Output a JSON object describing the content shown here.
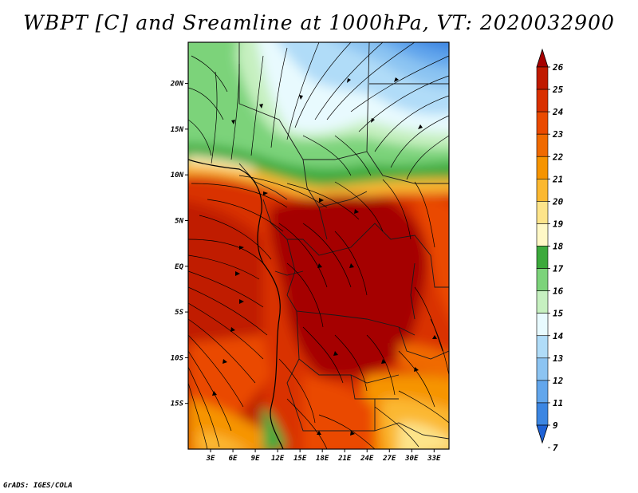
{
  "title": "WBPT [C] and Sreamline at 1000hPa, VT: 2020032900",
  "credit": "GrADS: IGES/COLA",
  "map": {
    "lat_labels": [
      "20N",
      "15N",
      "10N",
      "5N",
      "EQ",
      "5S",
      "10S",
      "15S"
    ],
    "lon_labels": [
      "3E",
      "6E",
      "9E",
      "12E",
      "15E",
      "18E",
      "21E",
      "24E",
      "27E",
      "30E",
      "33E"
    ],
    "lat_values": [
      20,
      15,
      10,
      5,
      0,
      -5,
      -10,
      -15
    ],
    "lon_values": [
      3,
      6,
      9,
      12,
      15,
      18,
      21,
      24,
      27,
      30,
      33
    ],
    "lon_range": [
      0,
      35
    ],
    "lat_range": [
      -20,
      24.5
    ]
  },
  "colorbar": {
    "labels": [
      "26",
      "25",
      "24",
      "23",
      "22",
      "21",
      "20",
      "19",
      "18",
      "17",
      "16",
      "15",
      "14",
      "13",
      "12",
      "11",
      "9",
      "7"
    ],
    "colors": [
      "#a50000",
      "#c01a00",
      "#d93000",
      "#ea4a00",
      "#f06a00",
      "#f69400",
      "#fbb830",
      "#fde48a",
      "#fff8c6",
      "#3caa3c",
      "#7cd37a",
      "#c6f0c0",
      "#e8fafe",
      "#b0dcf8",
      "#8cc4f2",
      "#62a6ec",
      "#3c86e2",
      "#1e62d6"
    ]
  }
}
